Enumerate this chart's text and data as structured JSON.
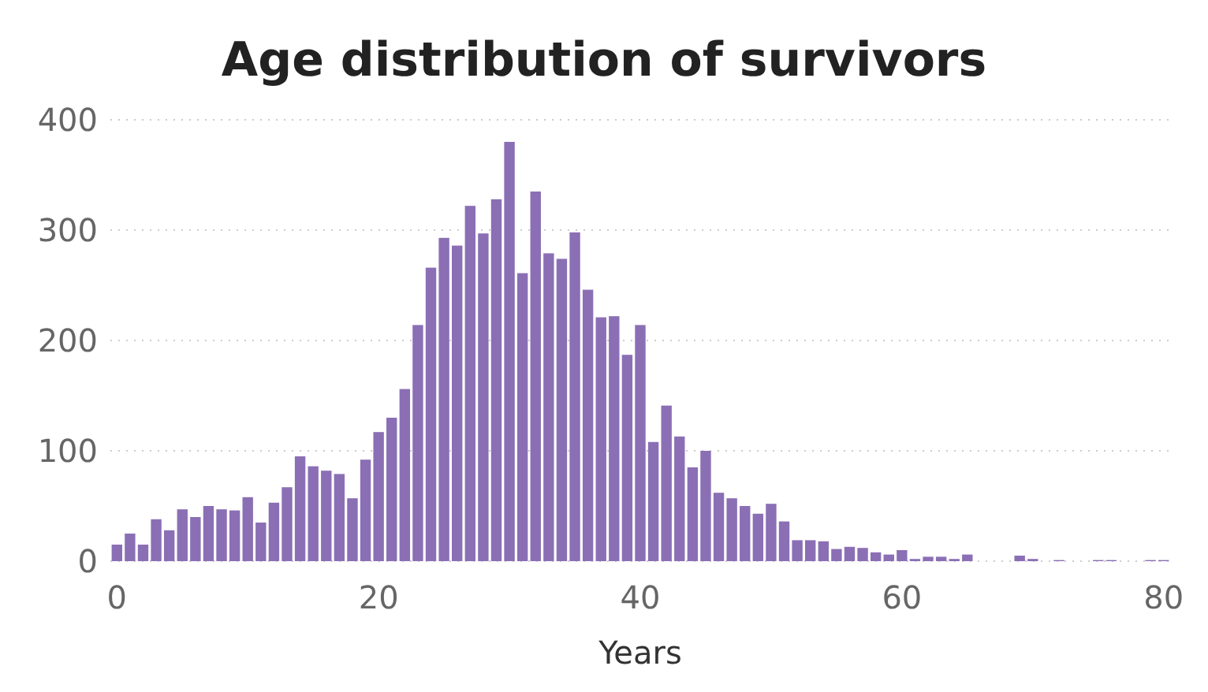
{
  "chart_data": {
    "type": "histogram",
    "title": "Age distribution of survivors",
    "xlabel": "Years",
    "bins": [
      -0.5,
      0.5,
      1.5,
      2.5,
      3.5,
      4.5,
      5.5,
      6.5,
      7.5,
      8.5,
      9.5,
      10.5,
      11.5,
      12.5,
      13.5,
      14.5,
      15.5,
      16.5,
      17.5,
      18.5,
      19.5,
      20.5,
      21.5,
      22.5,
      23.5,
      24.5,
      25.5,
      26.5,
      27.5,
      28.5,
      29.5,
      30.5,
      31.5,
      32.5,
      33.5,
      34.5,
      35.5,
      36.5,
      37.5,
      38.5,
      39.5,
      40.5,
      41.5,
      42.5,
      43.5,
      44.5,
      45.5,
      46.5,
      47.5,
      48.5,
      49.5,
      50.5,
      51.5,
      52.5,
      53.5,
      54.5,
      55.5,
      56.5,
      57.5,
      58.5,
      59.5,
      60.5,
      61.5,
      62.5,
      63.5,
      64.5,
      65.5,
      66.5,
      67.5,
      68.5,
      69.5,
      70.5,
      71.5,
      72.5,
      73.5,
      74.5,
      75.5,
      76.5,
      77.5,
      78.5,
      79.5,
      80.5
    ],
    "values": [
      15,
      25,
      15,
      38,
      28,
      47,
      40,
      50,
      47,
      46,
      58,
      35,
      53,
      67,
      95,
      86,
      82,
      79,
      57,
      92,
      117,
      130,
      156,
      214,
      266,
      293,
      286,
      322,
      297,
      328,
      380,
      261,
      335,
      279,
      274,
      298,
      246,
      221,
      222,
      187,
      214,
      108,
      141,
      113,
      85,
      100,
      62,
      57,
      50,
      43,
      52,
      36,
      19,
      19,
      18,
      11,
      13,
      12,
      8,
      6,
      10,
      2,
      4,
      4,
      2,
      6,
      0,
      0,
      0,
      5,
      2,
      0,
      1,
      0,
      0,
      1,
      1,
      0,
      0,
      1,
      1
    ],
    "color": "#8b6fb5",
    "xlim": [
      -0.5,
      80.5
    ],
    "xticks": [
      0,
      20,
      40,
      60,
      80
    ],
    "ylim": [
      0,
      400
    ],
    "yticks": [
      0,
      100,
      200,
      300,
      400
    ],
    "grid": "y"
  }
}
